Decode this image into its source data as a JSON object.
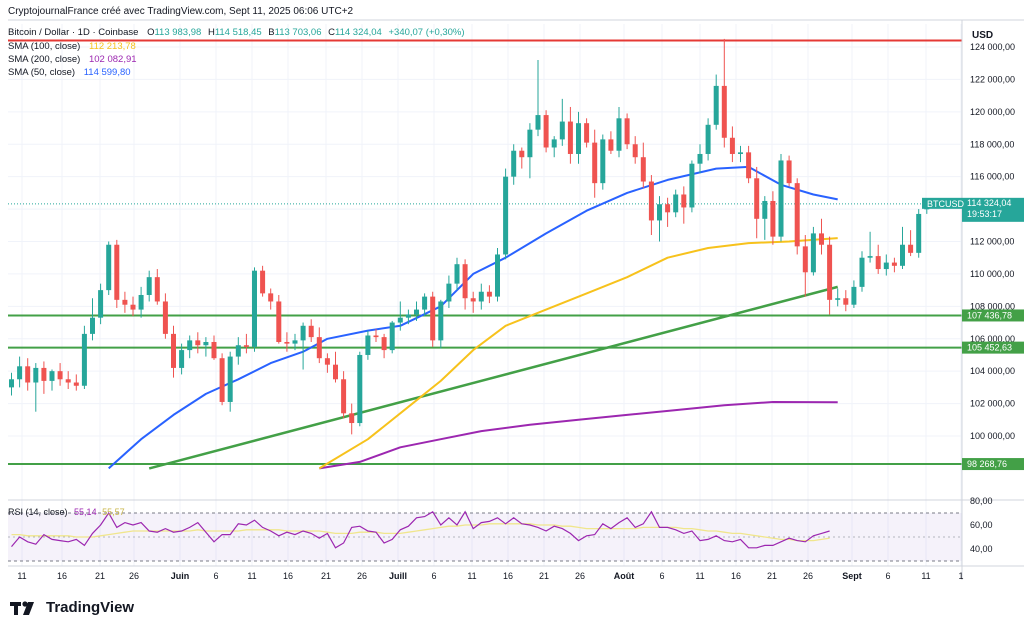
{
  "header": {
    "credit": "CryptojournalFrance créé avec TradingView.com, Sept 11, 2025 06:06 UTC+2"
  },
  "symbol": {
    "title": "Bitcoin / Dollar · 1D · Coinbase",
    "o_label": "O",
    "o": "113 983,98",
    "h_label": "H",
    "h": "114 518,45",
    "b_label": "B",
    "b": "113 703,06",
    "c_label": "C",
    "c": "114 324,04",
    "change": "+340,07 (+0,30%)"
  },
  "indicators": [
    {
      "name": "SMA (100, close)",
      "value": "112 213,78",
      "color": "#f7c21c"
    },
    {
      "name": "SMA (200, close)",
      "value": "102 082,91",
      "color": "#9c27b0"
    },
    {
      "name": "SMA (50, close)",
      "value": "114 599,80",
      "color": "#2962ff"
    }
  ],
  "rsi": {
    "label": "RSI (14, close)",
    "value": "55,14",
    "ma_value": "55,57",
    "axis_ticks": [
      "80,00",
      "60,00",
      "40,00"
    ],
    "upper_band": 70,
    "lower_band": 30,
    "rsi_color": "#9c27b0",
    "ma_color": "#f0e68c",
    "values": [
      42,
      50,
      46,
      44,
      52,
      48,
      47,
      46,
      48,
      43,
      53,
      60,
      70,
      58,
      62,
      60,
      62,
      55,
      54,
      57,
      54,
      55,
      58,
      62,
      54,
      46,
      52,
      52,
      61,
      60,
      64,
      58,
      55,
      51,
      54,
      52,
      55,
      53,
      49,
      53,
      41,
      45,
      58,
      59,
      55,
      54,
      45,
      48,
      56,
      59,
      66,
      67,
      71,
      60,
      66,
      60,
      71,
      57,
      62,
      63,
      66,
      61,
      66,
      61,
      60,
      58,
      55,
      59,
      57,
      53,
      47,
      51,
      52,
      61,
      57,
      62,
      66,
      58,
      61,
      71,
      58,
      58,
      56,
      53,
      55,
      47,
      48,
      51,
      47,
      46,
      48,
      41,
      41,
      43,
      43,
      46,
      49,
      47,
      46,
      51,
      53,
      55
    ],
    "ma": [
      52,
      52,
      51,
      51,
      51,
      51,
      51,
      51,
      50,
      50,
      50,
      51,
      52,
      53,
      54,
      55,
      55,
      55,
      55,
      55,
      55,
      55,
      55,
      56,
      55,
      55,
      55,
      55,
      55,
      56,
      56,
      56,
      56,
      56,
      55,
      55,
      55,
      55,
      55,
      54,
      53,
      53,
      53,
      54,
      54,
      54,
      53,
      53,
      53,
      54,
      55,
      56,
      57,
      58,
      59,
      59,
      60,
      60,
      60,
      61,
      61,
      61,
      61,
      61,
      61,
      60,
      60,
      60,
      59,
      59,
      58,
      57,
      57,
      57,
      57,
      57,
      57,
      57,
      58,
      58,
      58,
      58,
      58,
      57,
      57,
      56,
      55,
      55,
      54,
      53,
      53,
      52,
      51,
      50,
      49,
      48,
      48,
      47,
      47,
      47,
      48,
      49
    ]
  },
  "axis": {
    "currency": "USD",
    "price_ticks": [
      "124 000,00",
      "122 000,00",
      "120 000,00",
      "118 000,00",
      "116 000,00",
      "114 000,00",
      "112 000,00",
      "110 000,00",
      "108 000,00",
      "106 000,00",
      "104 000,00",
      "102 000,00",
      "100 000,00"
    ],
    "time_ticks": [
      "11",
      "16",
      "21",
      "26",
      "Juin",
      "6",
      "11",
      "16",
      "21",
      "26",
      "Juill",
      "6",
      "11",
      "16",
      "21",
      "26",
      "Août",
      "6",
      "11",
      "16",
      "21",
      "26",
      "Sept",
      "6",
      "11",
      "1"
    ]
  },
  "labels": {
    "ticker": "BTCUSD",
    "price": "114 324,04",
    "countdown": "19:53:17",
    "level_1": "107 436,78",
    "level_2": "105 452,63",
    "level_3": "98 268,76"
  },
  "colors": {
    "up": "#26a69a",
    "down": "#ef5350",
    "sma50": "#2962ff",
    "sma100": "#f7c21c",
    "sma200": "#9c27b0",
    "support": "#43a047",
    "resistance": "#e53935"
  },
  "chart_data": {
    "type": "candlestick",
    "timeframe": "1D",
    "ylim": [
      98000,
      124500
    ],
    "horizontal_levels": [
      {
        "price": 124400,
        "color": "resistance"
      },
      {
        "price": 107436.78,
        "color": "support"
      },
      {
        "price": 105452.63,
        "color": "support"
      },
      {
        "price": 98268.76,
        "color": "support"
      }
    ],
    "trendline": {
      "start": [
        17,
        98000
      ],
      "end": [
        102,
        109200
      ]
    },
    "sma50": [
      [
        12,
        98000
      ],
      [
        16,
        99800
      ],
      [
        20,
        101300
      ],
      [
        24,
        102600
      ],
      [
        28,
        103500
      ],
      [
        32,
        104500
      ],
      [
        36,
        105200
      ],
      [
        39,
        106000
      ],
      [
        44,
        106500
      ],
      [
        48,
        106800
      ],
      [
        53,
        108000
      ],
      [
        57,
        110000
      ],
      [
        61,
        111000
      ],
      [
        66,
        112500
      ],
      [
        71,
        113900
      ],
      [
        76,
        115000
      ],
      [
        81,
        115800
      ],
      [
        87,
        116500
      ],
      [
        91,
        116600
      ],
      [
        95,
        115500
      ],
      [
        99,
        114900
      ],
      [
        102,
        114600
      ]
    ],
    "sma100": [
      [
        38,
        98000
      ],
      [
        44,
        99800
      ],
      [
        49,
        101800
      ],
      [
        53,
        103400
      ],
      [
        57,
        105300
      ],
      [
        61,
        106800
      ],
      [
        66,
        107800
      ],
      [
        71,
        108800
      ],
      [
        76,
        109800
      ],
      [
        81,
        111000
      ],
      [
        86,
        111600
      ],
      [
        91,
        111900
      ],
      [
        96,
        112000
      ],
      [
        102,
        112210
      ]
    ],
    "sma200": [
      [
        38,
        98000
      ],
      [
        43,
        98400
      ],
      [
        48,
        99300
      ],
      [
        53,
        99800
      ],
      [
        58,
        100300
      ],
      [
        64,
        100700
      ],
      [
        70,
        101000
      ],
      [
        76,
        101300
      ],
      [
        82,
        101600
      ],
      [
        88,
        101900
      ],
      [
        94,
        102100
      ],
      [
        102,
        102080
      ]
    ],
    "candles": [
      {
        "o": 103000,
        "h": 103900,
        "l": 102500,
        "c": 103500
      },
      {
        "o": 103500,
        "h": 104900,
        "l": 103000,
        "c": 104300
      },
      {
        "o": 104300,
        "h": 104800,
        "l": 102800,
        "c": 103300
      },
      {
        "o": 103300,
        "h": 104500,
        "l": 101500,
        "c": 104200
      },
      {
        "o": 104200,
        "h": 104600,
        "l": 102600,
        "c": 103400
      },
      {
        "o": 103400,
        "h": 104100,
        "l": 102800,
        "c": 104000
      },
      {
        "o": 104000,
        "h": 104500,
        "l": 103100,
        "c": 103500
      },
      {
        "o": 103500,
        "h": 104000,
        "l": 102900,
        "c": 103300
      },
      {
        "o": 103300,
        "h": 103800,
        "l": 102800,
        "c": 103100
      },
      {
        "o": 103100,
        "h": 106800,
        "l": 102900,
        "c": 106300
      },
      {
        "o": 106300,
        "h": 108500,
        "l": 105900,
        "c": 107300
      },
      {
        "o": 107300,
        "h": 109400,
        "l": 106900,
        "c": 109000
      },
      {
        "o": 109000,
        "h": 112000,
        "l": 108700,
        "c": 111800
      },
      {
        "o": 111800,
        "h": 112100,
        "l": 107900,
        "c": 108400
      },
      {
        "o": 108400,
        "h": 108900,
        "l": 107600,
        "c": 108100
      },
      {
        "o": 108100,
        "h": 108600,
        "l": 107400,
        "c": 107800
      },
      {
        "o": 107800,
        "h": 109200,
        "l": 107300,
        "c": 108700
      },
      {
        "o": 108700,
        "h": 110200,
        "l": 108300,
        "c": 109800
      },
      {
        "o": 109800,
        "h": 110300,
        "l": 108100,
        "c": 108300
      },
      {
        "o": 108300,
        "h": 108800,
        "l": 106000,
        "c": 106300
      },
      {
        "o": 106300,
        "h": 106800,
        "l": 103600,
        "c": 104200
      },
      {
        "o": 104200,
        "h": 105700,
        "l": 103800,
        "c": 105300
      },
      {
        "o": 105300,
        "h": 106200,
        "l": 104800,
        "c": 105900
      },
      {
        "o": 105900,
        "h": 106400,
        "l": 105100,
        "c": 105600
      },
      {
        "o": 105600,
        "h": 106100,
        "l": 104900,
        "c": 105800
      },
      {
        "o": 105800,
        "h": 106200,
        "l": 104700,
        "c": 104800
      },
      {
        "o": 104800,
        "h": 105100,
        "l": 101900,
        "c": 102100
      },
      {
        "o": 102100,
        "h": 105200,
        "l": 101500,
        "c": 104900
      },
      {
        "o": 104900,
        "h": 106100,
        "l": 104400,
        "c": 105600
      },
      {
        "o": 105600,
        "h": 106300,
        "l": 105100,
        "c": 105500
      },
      {
        "o": 105500,
        "h": 110400,
        "l": 105200,
        "c": 110200
      },
      {
        "o": 110200,
        "h": 110500,
        "l": 108600,
        "c": 108800
      },
      {
        "o": 108800,
        "h": 109100,
        "l": 107800,
        "c": 108300
      },
      {
        "o": 108300,
        "h": 108700,
        "l": 105700,
        "c": 105800
      },
      {
        "o": 105800,
        "h": 106400,
        "l": 105200,
        "c": 105700
      },
      {
        "o": 105700,
        "h": 106300,
        "l": 105300,
        "c": 105900
      },
      {
        "o": 105900,
        "h": 107000,
        "l": 104100,
        "c": 106800
      },
      {
        "o": 106800,
        "h": 107200,
        "l": 105800,
        "c": 106100
      },
      {
        "o": 106100,
        "h": 106700,
        "l": 104500,
        "c": 104800
      },
      {
        "o": 104800,
        "h": 105100,
        "l": 103900,
        "c": 104400
      },
      {
        "o": 104400,
        "h": 105200,
        "l": 103300,
        "c": 103500
      },
      {
        "o": 103500,
        "h": 104000,
        "l": 101100,
        "c": 101400
      },
      {
        "o": 101400,
        "h": 102000,
        "l": 100100,
        "c": 100800
      },
      {
        "o": 100800,
        "h": 105200,
        "l": 100600,
        "c": 105000
      },
      {
        "o": 105000,
        "h": 106500,
        "l": 104700,
        "c": 106200
      },
      {
        "o": 106200,
        "h": 106600,
        "l": 105800,
        "c": 106100
      },
      {
        "o": 106100,
        "h": 106300,
        "l": 104800,
        "c": 105300
      },
      {
        "o": 105300,
        "h": 107100,
        "l": 105100,
        "c": 107000
      },
      {
        "o": 107000,
        "h": 108300,
        "l": 106500,
        "c": 107300
      },
      {
        "o": 107300,
        "h": 107800,
        "l": 106900,
        "c": 107500
      },
      {
        "o": 107500,
        "h": 108300,
        "l": 107100,
        "c": 107800
      },
      {
        "o": 107800,
        "h": 108800,
        "l": 107400,
        "c": 108600
      },
      {
        "o": 108600,
        "h": 108900,
        "l": 105500,
        "c": 105900
      },
      {
        "o": 105900,
        "h": 108400,
        "l": 105400,
        "c": 108300
      },
      {
        "o": 108300,
        "h": 109900,
        "l": 107900,
        "c": 109400
      },
      {
        "o": 109400,
        "h": 111000,
        "l": 109000,
        "c": 110600
      },
      {
        "o": 110600,
        "h": 110900,
        "l": 107800,
        "c": 108500
      },
      {
        "o": 108500,
        "h": 108900,
        "l": 107600,
        "c": 108300
      },
      {
        "o": 108300,
        "h": 109400,
        "l": 107800,
        "c": 108900
      },
      {
        "o": 108900,
        "h": 109300,
        "l": 108200,
        "c": 108600
      },
      {
        "o": 108600,
        "h": 111600,
        "l": 108300,
        "c": 111200
      },
      {
        "o": 111200,
        "h": 116500,
        "l": 110900,
        "c": 116000
      },
      {
        "o": 116000,
        "h": 118000,
        "l": 115500,
        "c": 117600
      },
      {
        "o": 117600,
        "h": 117800,
        "l": 116500,
        "c": 117200
      },
      {
        "o": 117200,
        "h": 119300,
        "l": 115900,
        "c": 118900
      },
      {
        "o": 118900,
        "h": 123200,
        "l": 118500,
        "c": 119800
      },
      {
        "o": 119800,
        "h": 120100,
        "l": 117500,
        "c": 117800
      },
      {
        "o": 117800,
        "h": 118500,
        "l": 117200,
        "c": 118300
      },
      {
        "o": 118300,
        "h": 120800,
        "l": 117900,
        "c": 119400
      },
      {
        "o": 119400,
        "h": 120300,
        "l": 116800,
        "c": 117400
      },
      {
        "o": 117400,
        "h": 120000,
        "l": 116800,
        "c": 119300
      },
      {
        "o": 119300,
        "h": 119600,
        "l": 117800,
        "c": 118100
      },
      {
        "o": 118100,
        "h": 118900,
        "l": 114700,
        "c": 115600
      },
      {
        "o": 115600,
        "h": 118600,
        "l": 115200,
        "c": 118300
      },
      {
        "o": 118300,
        "h": 118800,
        "l": 117400,
        "c": 117600
      },
      {
        "o": 117600,
        "h": 120300,
        "l": 117200,
        "c": 119600
      },
      {
        "o": 119600,
        "h": 119900,
        "l": 117700,
        "c": 118000
      },
      {
        "o": 118000,
        "h": 118500,
        "l": 116800,
        "c": 117200
      },
      {
        "o": 117200,
        "h": 118100,
        "l": 115300,
        "c": 115700
      },
      {
        "o": 115700,
        "h": 116100,
        "l": 112400,
        "c": 113300
      },
      {
        "o": 113300,
        "h": 114800,
        "l": 112000,
        "c": 114300
      },
      {
        "o": 114300,
        "h": 114700,
        "l": 112900,
        "c": 113800
      },
      {
        "o": 113800,
        "h": 115200,
        "l": 113500,
        "c": 114900
      },
      {
        "o": 114900,
        "h": 115400,
        "l": 113100,
        "c": 114100
      },
      {
        "o": 114100,
        "h": 117000,
        "l": 113800,
        "c": 116800
      },
      {
        "o": 116800,
        "h": 118000,
        "l": 116200,
        "c": 117400
      },
      {
        "o": 117400,
        "h": 119600,
        "l": 117000,
        "c": 119200
      },
      {
        "o": 119200,
        "h": 122300,
        "l": 118900,
        "c": 121600
      },
      {
        "o": 121600,
        "h": 124500,
        "l": 117800,
        "c": 118400
      },
      {
        "o": 118400,
        "h": 119100,
        "l": 116900,
        "c": 117400
      },
      {
        "o": 117400,
        "h": 117900,
        "l": 116900,
        "c": 117500
      },
      {
        "o": 117500,
        "h": 117900,
        "l": 115600,
        "c": 115900
      },
      {
        "o": 115900,
        "h": 116600,
        "l": 112200,
        "c": 113400
      },
      {
        "o": 113400,
        "h": 114800,
        "l": 112100,
        "c": 114500
      },
      {
        "o": 114500,
        "h": 115100,
        "l": 111800,
        "c": 112300
      },
      {
        "o": 112300,
        "h": 117400,
        "l": 112000,
        "c": 117000
      },
      {
        "o": 117000,
        "h": 117300,
        "l": 115400,
        "c": 115600
      },
      {
        "o": 115600,
        "h": 115900,
        "l": 111200,
        "c": 111700
      },
      {
        "o": 111700,
        "h": 112400,
        "l": 108600,
        "c": 110100
      },
      {
        "o": 110100,
        "h": 112900,
        "l": 109900,
        "c": 112500
      },
      {
        "o": 112500,
        "h": 113400,
        "l": 111200,
        "c": 111800
      },
      {
        "o": 111800,
        "h": 112300,
        "l": 107500,
        "c": 108400
      },
      {
        "o": 108400,
        "h": 109100,
        "l": 108000,
        "c": 108500
      },
      {
        "o": 108500,
        "h": 109000,
        "l": 107700,
        "c": 108100
      },
      {
        "o": 108100,
        "h": 109600,
        "l": 107900,
        "c": 109200
      },
      {
        "o": 109200,
        "h": 111400,
        "l": 108900,
        "c": 111000
      },
      {
        "o": 111000,
        "h": 112600,
        "l": 110700,
        "c": 111100
      },
      {
        "o": 111100,
        "h": 111800,
        "l": 110000,
        "c": 110300
      },
      {
        "o": 110300,
        "h": 111200,
        "l": 109900,
        "c": 110700
      },
      {
        "o": 110700,
        "h": 111000,
        "l": 110100,
        "c": 110500
      },
      {
        "o": 110500,
        "h": 112900,
        "l": 110300,
        "c": 111800
      },
      {
        "o": 111800,
        "h": 112700,
        "l": 111100,
        "c": 111300
      },
      {
        "o": 111300,
        "h": 114000,
        "l": 111000,
        "c": 113700
      },
      {
        "o": 113983.98,
        "h": 114518.45,
        "l": 113703.06,
        "c": 114324.04
      }
    ]
  }
}
